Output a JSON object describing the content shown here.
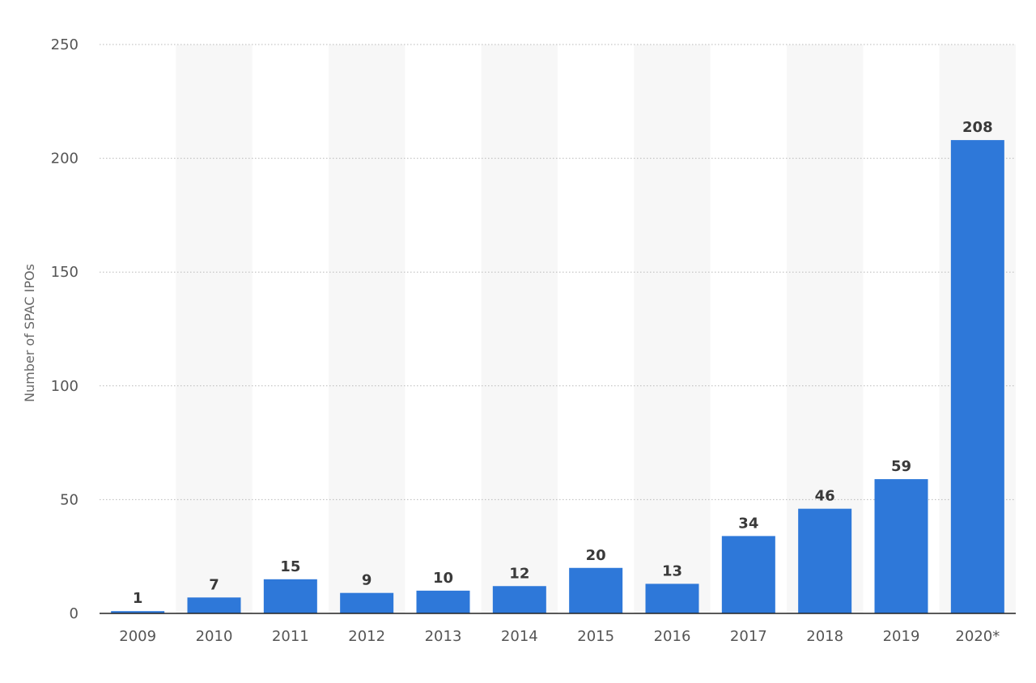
{
  "chart_data": {
    "type": "bar",
    "categories": [
      "2009",
      "2010",
      "2011",
      "2012",
      "2013",
      "2014",
      "2015",
      "2016",
      "2017",
      "2018",
      "2019",
      "2020*"
    ],
    "values": [
      1,
      7,
      15,
      9,
      10,
      12,
      20,
      13,
      34,
      46,
      59,
      208
    ],
    "xlabel": "",
    "ylabel": "Number of SPAC IPOs",
    "ylim": [
      0,
      250
    ],
    "yticks": [
      0,
      50,
      100,
      150,
      200,
      250
    ],
    "grid": true,
    "data_labels": true,
    "legend": "none",
    "colors": {
      "bar": "#2e78d9",
      "band": "#f7f7f7",
      "grid": "#b9b9b9"
    }
  }
}
